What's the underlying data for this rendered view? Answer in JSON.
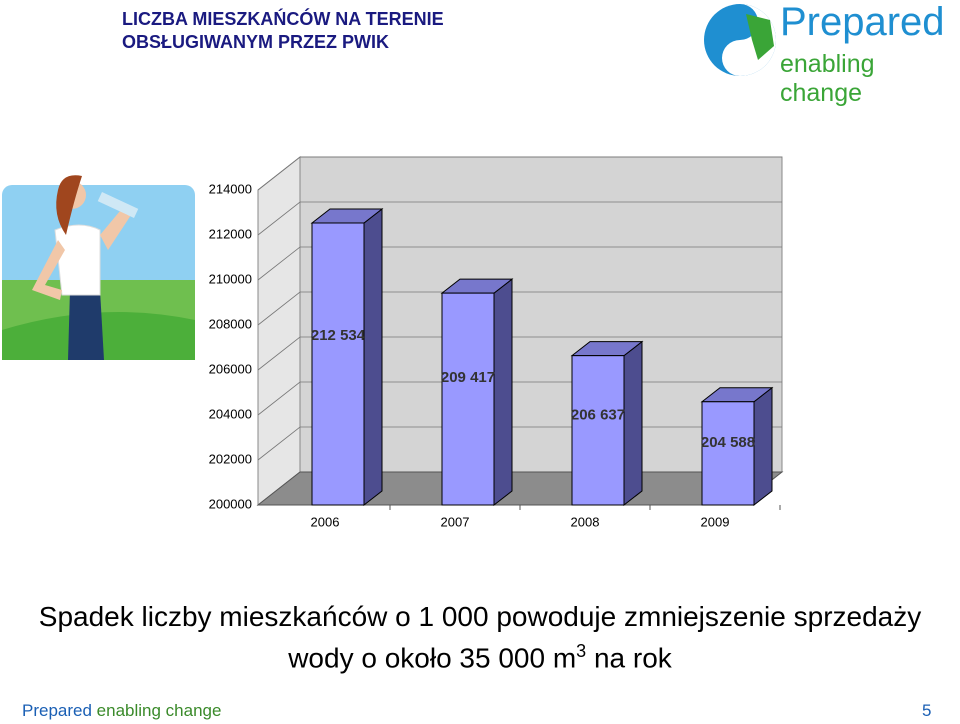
{
  "chart_data": {
    "type": "bar",
    "title": "LICZBA MIESZKAŃCÓW NA TERENIE OBSŁUGIWANYM PRZEZ PWIK",
    "categories": [
      "2006",
      "2007",
      "2008",
      "2009"
    ],
    "values": [
      212534,
      209417,
      206637,
      204588
    ],
    "value_labels": [
      "212 534",
      "209 417",
      "206 637",
      "204 588"
    ],
    "color": "#9999ff",
    "ylim": [
      200000,
      214000
    ],
    "yticks": [
      200000,
      202000,
      204000,
      206000,
      208000,
      210000,
      212000,
      214000
    ],
    "grid": true
  },
  "logo": {
    "name": "Prepared",
    "tagline": "enabling change"
  },
  "caption": [
    "Spadek liczby mieszkańców o 1 000 powoduje zmniejszenie sprzedaży",
    "wody o około 35 000 m",
    "3",
    "na rok"
  ],
  "footer": {
    "brand": "Prepared",
    "tagline": "enabling change",
    "page": "5"
  }
}
